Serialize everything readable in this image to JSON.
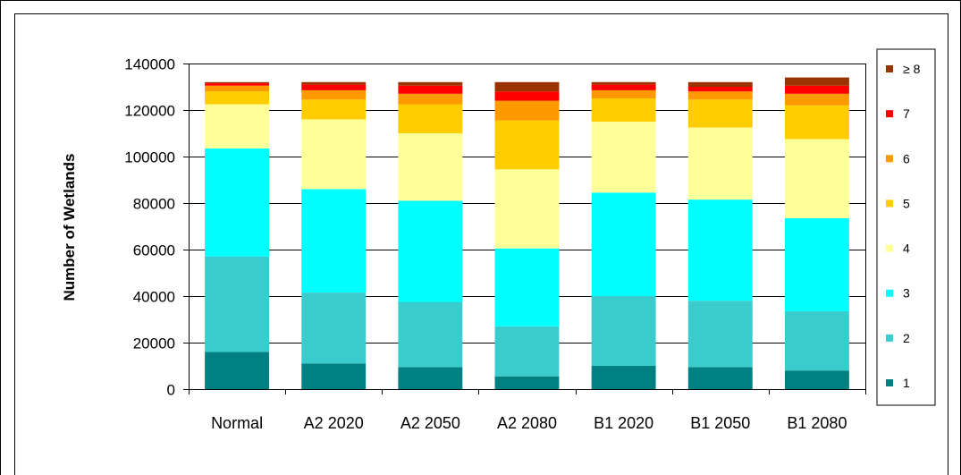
{
  "chart_data": {
    "type": "bar",
    "stacked": true,
    "title": "",
    "xlabel": "",
    "ylabel": "Number of Wetlands",
    "ylim": [
      0,
      140000
    ],
    "yticks": [
      "0",
      "20000",
      "40000",
      "60000",
      "80000",
      "100000",
      "120000",
      "140000"
    ],
    "grid": true,
    "legend_position": "right",
    "categories": [
      "Normal",
      "A2 2020",
      "A2 2050",
      "A2 2080",
      "B1 2020",
      "B1 2050",
      "B1 2080"
    ],
    "series": [
      {
        "name": "1",
        "color": "#008080",
        "values": [
          16000,
          11000,
          9500,
          5500,
          10000,
          9500,
          8000
        ]
      },
      {
        "name": "2",
        "color": "#3ACCCC",
        "values": [
          41000,
          30500,
          28000,
          21500,
          30000,
          28500,
          25500
        ]
      },
      {
        "name": "3",
        "color": "#00FFFF",
        "values": [
          46500,
          44500,
          43500,
          33500,
          44500,
          43500,
          40000
        ]
      },
      {
        "name": "4",
        "color": "#FFFF99",
        "values": [
          19000,
          30000,
          29000,
          34000,
          30500,
          31000,
          34000
        ]
      },
      {
        "name": "5",
        "color": "#FFCC00",
        "values": [
          5500,
          8500,
          12500,
          21000,
          10000,
          12000,
          14500
        ]
      },
      {
        "name": "6",
        "color": "#FF9900",
        "values": [
          2500,
          4000,
          4500,
          8500,
          3500,
          3500,
          5000
        ]
      },
      {
        "name": "7",
        "color": "#FF0000",
        "values": [
          1000,
          2500,
          3500,
          4000,
          2500,
          2000,
          3500
        ]
      },
      {
        "name": "≥ 8",
        "color": "#993300",
        "values": [
          500,
          1000,
          1500,
          4000,
          1000,
          2000,
          3500
        ]
      }
    ]
  }
}
